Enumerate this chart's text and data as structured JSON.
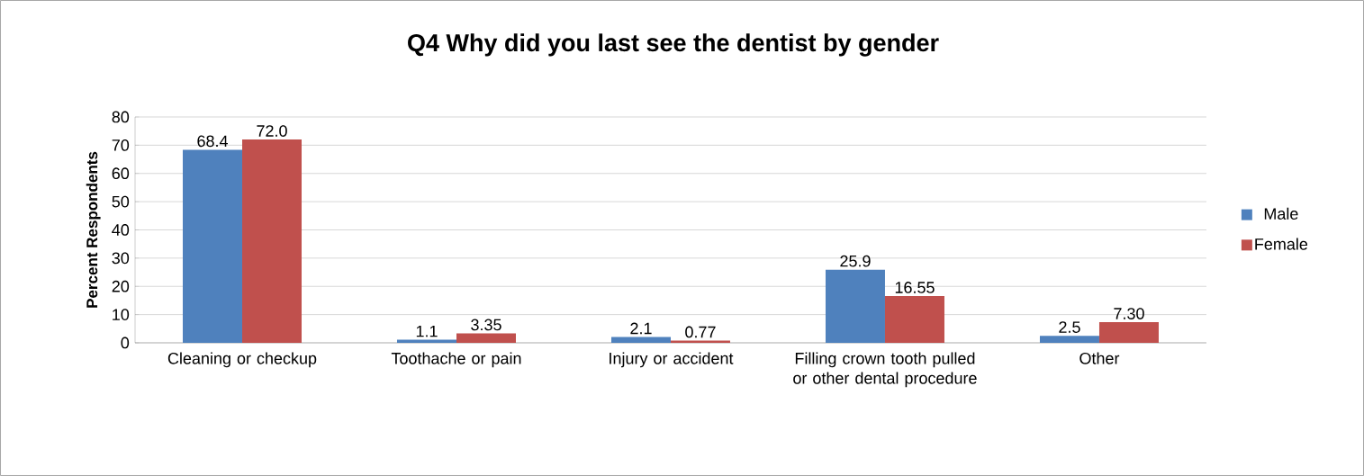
{
  "chart_data": {
    "type": "bar",
    "title": "Q4 Why did you last see the dentist by gender",
    "ylabel": "Percent Respondents",
    "categories": [
      "Cleaning or checkup",
      "Toothache or pain",
      "Injury or accident",
      "Filling crown tooth pulled or other dental procedure",
      "Other"
    ],
    "series": [
      {
        "name": "Male",
        "color": "#4f81bd",
        "values": [
          68.4,
          1.1,
          2.1,
          25.9,
          2.5
        ],
        "value_labels": [
          "68.4",
          "1.1",
          "2.1",
          "25.9",
          "2.5"
        ]
      },
      {
        "name": "Female",
        "color": "#c0504d",
        "values": [
          72.0,
          3.35,
          0.77,
          16.55,
          7.3
        ],
        "value_labels": [
          "72.0",
          "3.35",
          "0.77",
          "16.55",
          "7.30"
        ]
      }
    ],
    "ylim": [
      0,
      80
    ],
    "yticks": [
      0,
      10,
      20,
      30,
      40,
      50,
      60,
      70,
      80
    ],
    "grid": "y",
    "legend": "right"
  }
}
